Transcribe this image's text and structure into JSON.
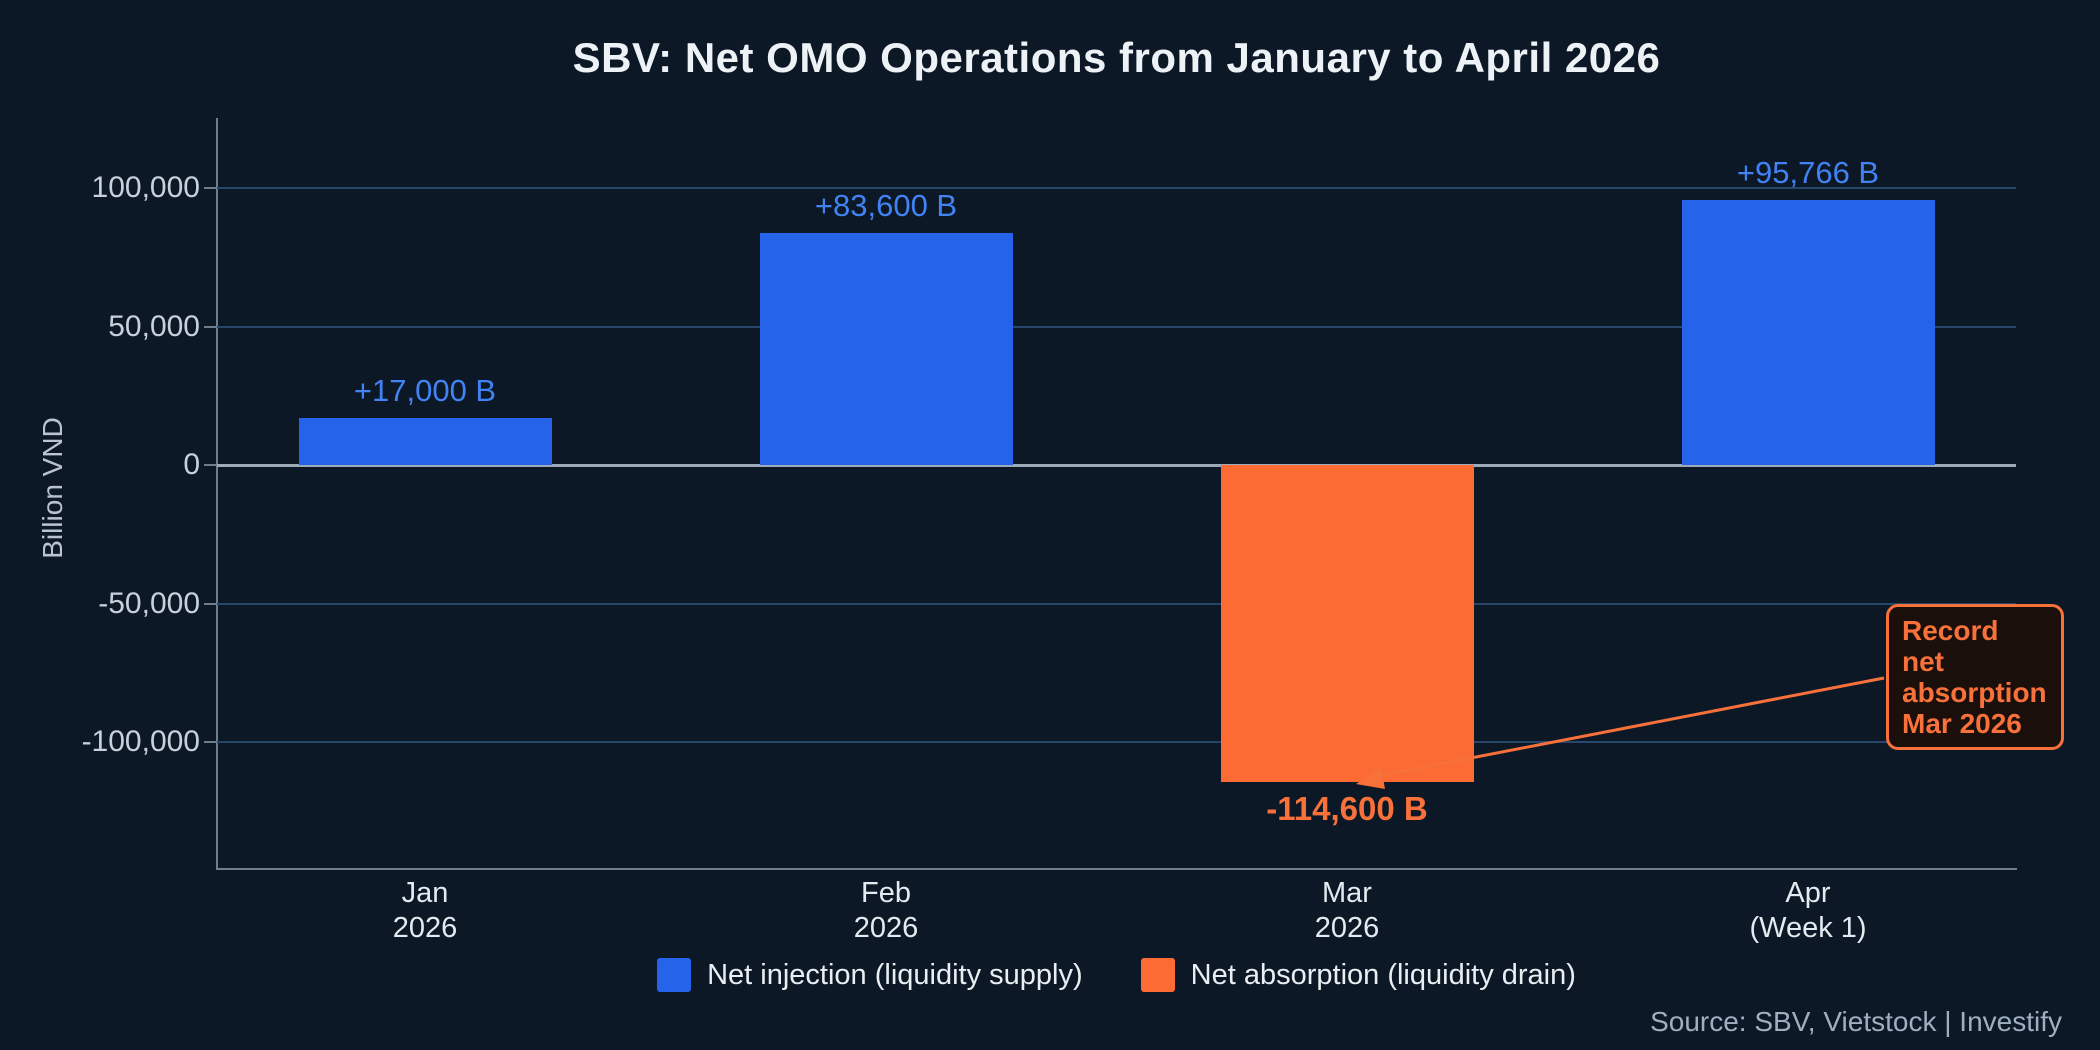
{
  "title": "SBV: Net OMO Operations from January to April 2026",
  "ylabel": "Billion VND",
  "source": "Source: SBV, Vietstock  |  Investify",
  "colors": {
    "background": "#0D1826",
    "injection_bar": "#2563EB",
    "absorption_bar": "#FC6B33",
    "injection_label": "#4182F4",
    "absorption_label": "#F8713B",
    "annotation_accent": "#F8713B",
    "gridline": "#28456A",
    "zero_line": "#9DAAB8"
  },
  "legend": [
    {
      "label": "Net injection (liquidity supply)",
      "color": "#2563EB"
    },
    {
      "label": "Net absorption (liquidity drain)",
      "color": "#FC6B33"
    }
  ],
  "annotation": {
    "lines": [
      "Record net",
      "absorption",
      "Mar 2026"
    ]
  },
  "chart_data": {
    "type": "bar",
    "categories": [
      "Jan\n2026",
      "Feb\n2026",
      "Mar\n2026",
      "Apr\n(Week 1)"
    ],
    "values": [
      17000,
      83600,
      -114600,
      95766
    ],
    "point_labels": [
      "+17,000 B",
      "+83,600 B",
      "-114,600 B",
      "+95,766 B"
    ],
    "title": "SBV: Net OMO Operations from January to April 2026",
    "xlabel": "",
    "ylabel": "Billion VND",
    "ylim": [
      -145500,
      125300
    ],
    "yticks": [
      100000,
      50000,
      0,
      -50000,
      -100000
    ],
    "ytick_labels": [
      "100,000",
      "50,000",
      "0",
      "-50,000",
      "-100,000"
    ],
    "grid": true,
    "legend_position": "bottom"
  }
}
